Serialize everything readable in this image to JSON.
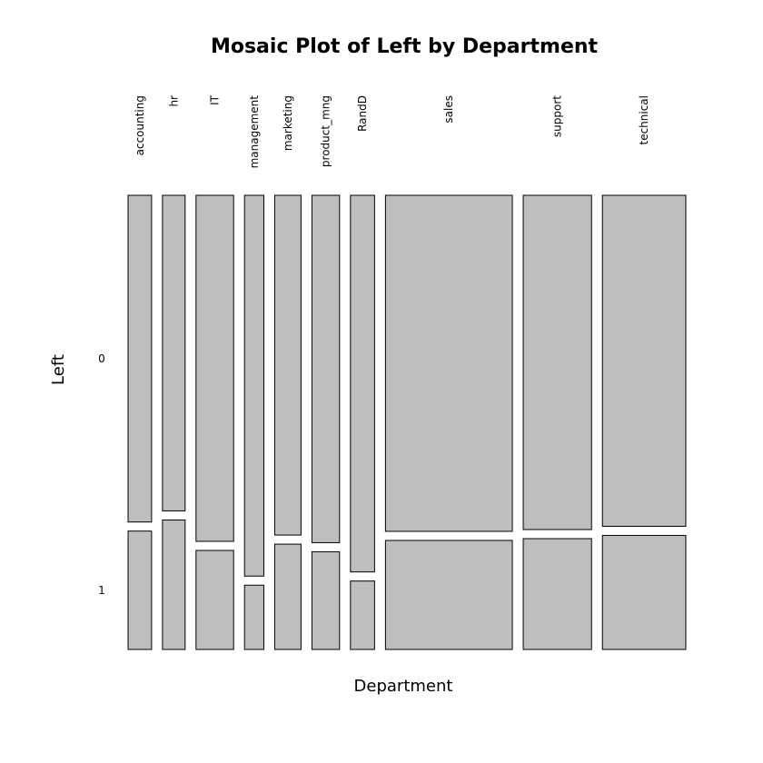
{
  "chart_data": {
    "type": "mosaic",
    "title": "Mosaic Plot of Left by Department",
    "x_label": "Department",
    "y_label": "Left",
    "categories": [
      "accounting",
      "hr",
      "IT",
      "management",
      "marketing",
      "product_mng",
      "RandD",
      "sales",
      "support",
      "technical"
    ],
    "series": [
      {
        "name": "0",
        "color": "#bebebe",
        "values": [
          563,
          524,
          954,
          539,
          655,
          704,
          666,
          3126,
          1674,
          2023
        ]
      },
      {
        "name": "1",
        "color": "#bebebe",
        "values": [
          204,
          215,
          273,
          91,
          203,
          198,
          121,
          1014,
          555,
          697
        ]
      }
    ]
  }
}
